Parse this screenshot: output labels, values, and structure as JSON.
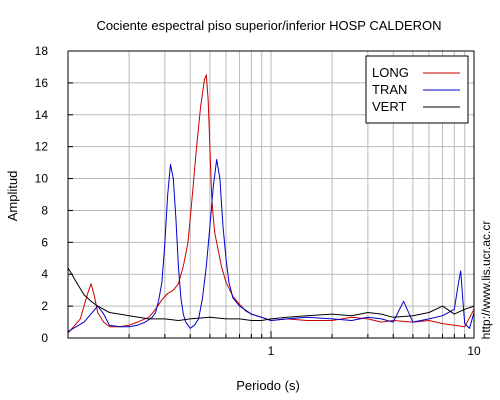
{
  "chart_data": {
    "type": "line",
    "title": "Cociente espectral piso superior/inferior  HOSP CALDERON",
    "xlabel": "Periodo (s)",
    "ylabel": "Amplitud",
    "xscale": "log",
    "xlim": [
      0.1,
      10
    ],
    "ylim": [
      0,
      18
    ],
    "x_tick_labels": [
      "1",
      "10"
    ],
    "y_ticks": [
      0,
      2,
      4,
      6,
      8,
      10,
      12,
      14,
      16,
      18
    ],
    "grid": true,
    "legend_position": "top-right",
    "side_text": "http://www.lis.ucr.ac.cr",
    "series": [
      {
        "name": "LONG",
        "color": "#cc0000",
        "x": [
          0.1,
          0.115,
          0.125,
          0.13,
          0.135,
          0.14,
          0.15,
          0.16,
          0.18,
          0.2,
          0.22,
          0.25,
          0.27,
          0.29,
          0.31,
          0.33,
          0.35,
          0.37,
          0.39,
          0.41,
          0.43,
          0.45,
          0.47,
          0.48,
          0.49,
          0.5,
          0.51,
          0.52,
          0.53,
          0.55,
          0.57,
          0.6,
          0.65,
          0.7,
          0.75,
          0.8,
          0.9,
          1.0,
          1.2,
          1.5,
          2.0,
          2.5,
          3.0,
          3.5,
          4.0,
          5.0,
          6.0,
          7.0,
          8.0,
          9.0,
          10.0
        ],
        "y": [
          0.3,
          1.2,
          2.8,
          3.4,
          2.6,
          1.6,
          1.0,
          0.7,
          0.7,
          0.8,
          1.0,
          1.3,
          1.8,
          2.4,
          2.8,
          3.0,
          3.4,
          4.5,
          6.0,
          9.0,
          12.0,
          14.5,
          16.2,
          16.5,
          15.0,
          12.0,
          9.0,
          7.5,
          6.5,
          5.5,
          4.5,
          3.5,
          2.6,
          2.1,
          1.7,
          1.5,
          1.3,
          1.1,
          1.2,
          1.1,
          1.1,
          1.3,
          1.2,
          1.0,
          1.1,
          1.0,
          1.1,
          0.9,
          0.8,
          0.7,
          1.8
        ]
      },
      {
        "name": "TRAN",
        "color": "#0000cc",
        "x": [
          0.1,
          0.12,
          0.14,
          0.15,
          0.16,
          0.18,
          0.2,
          0.22,
          0.24,
          0.26,
          0.27,
          0.28,
          0.29,
          0.3,
          0.31,
          0.32,
          0.33,
          0.34,
          0.35,
          0.36,
          0.37,
          0.38,
          0.39,
          0.4,
          0.42,
          0.44,
          0.46,
          0.48,
          0.5,
          0.52,
          0.54,
          0.56,
          0.57,
          0.58,
          0.6,
          0.62,
          0.65,
          0.7,
          0.8,
          0.9,
          1.0,
          1.2,
          1.5,
          2.0,
          2.5,
          3.0,
          3.5,
          4.0,
          4.5,
          5.0,
          6.0,
          7.0,
          8.0,
          8.4,
          8.6,
          8.8,
          9.0,
          9.5,
          10.0
        ],
        "y": [
          0.4,
          1.0,
          2.0,
          1.5,
          0.8,
          0.7,
          0.7,
          0.8,
          1.0,
          1.3,
          1.6,
          2.4,
          3.5,
          6.0,
          9.0,
          10.9,
          10.0,
          7.5,
          4.5,
          2.5,
          1.5,
          1.0,
          0.8,
          0.6,
          0.8,
          1.2,
          2.5,
          4.5,
          7.0,
          9.5,
          11.2,
          10.0,
          8.5,
          7.0,
          5.0,
          3.5,
          2.5,
          2.0,
          1.5,
          1.3,
          1.1,
          1.2,
          1.3,
          1.2,
          1.1,
          1.3,
          1.2,
          1.0,
          2.3,
          1.0,
          1.2,
          1.4,
          1.8,
          3.5,
          4.2,
          2.5,
          0.9,
          0.6,
          1.6
        ]
      },
      {
        "name": "VERT",
        "color": "#000000",
        "x": [
          0.1,
          0.11,
          0.12,
          0.13,
          0.14,
          0.16,
          0.18,
          0.2,
          0.25,
          0.3,
          0.35,
          0.4,
          0.5,
          0.6,
          0.7,
          0.8,
          0.9,
          1.0,
          1.2,
          1.5,
          2.0,
          2.5,
          3.0,
          3.5,
          4.0,
          5.0,
          6.0,
          7.0,
          8.0,
          9.0,
          10.0
        ],
        "y": [
          4.4,
          3.5,
          2.7,
          2.3,
          2.0,
          1.6,
          1.5,
          1.4,
          1.2,
          1.2,
          1.1,
          1.2,
          1.3,
          1.2,
          1.2,
          1.1,
          1.1,
          1.2,
          1.3,
          1.4,
          1.5,
          1.4,
          1.6,
          1.5,
          1.3,
          1.4,
          1.6,
          2.0,
          1.5,
          1.8,
          2.0
        ]
      }
    ]
  }
}
